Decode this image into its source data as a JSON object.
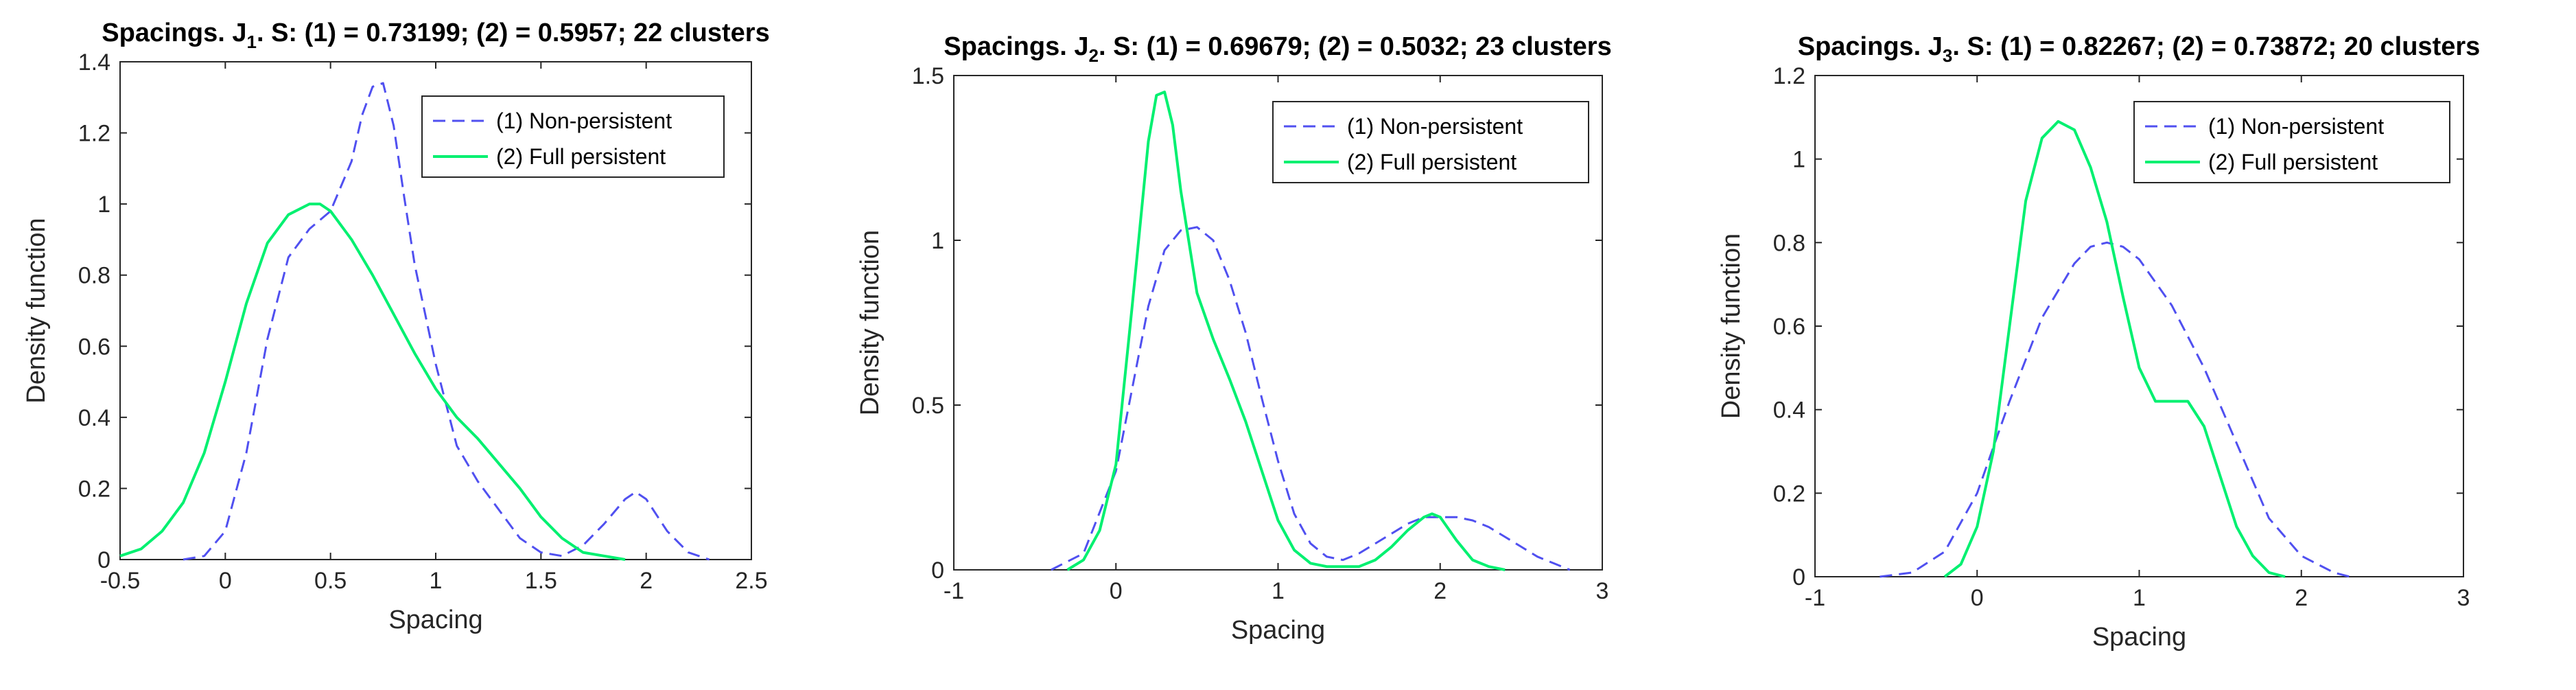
{
  "colors": {
    "series1": "#5050F0",
    "series2": "#00F070",
    "axis": "#262626"
  },
  "chart_data": [
    {
      "type": "line",
      "title": {
        "pre": "Spacings. J",
        "sub": "1",
        "post": ". S: (1) = 0.73199; (2) = 0.5957; 22 clusters"
      },
      "xlabel": "Spacing",
      "ylabel": "Density function",
      "xlim": [
        -0.5,
        2.5
      ],
      "ylim": [
        0,
        1.4
      ],
      "xticks": [
        -0.5,
        0,
        0.5,
        1,
        1.5,
        2,
        2.5
      ],
      "xtick_labels": [
        "-0.5",
        "0",
        "0.5",
        "1",
        "1.5",
        "2",
        "2.5"
      ],
      "yticks": [
        0,
        0.2,
        0.4,
        0.6,
        0.8,
        1,
        1.2,
        1.4
      ],
      "ytick_labels": [
        "0",
        "0.2",
        "0.4",
        "0.6",
        "0.8",
        "1",
        "1.2",
        "1.4"
      ],
      "legend_position": "top-right",
      "series": [
        {
          "name": "(1) Non-persistent",
          "style": "dashed",
          "x": [
            -0.2,
            -0.1,
            0,
            0.1,
            0.2,
            0.3,
            0.4,
            0.5,
            0.6,
            0.65,
            0.7,
            0.75,
            0.8,
            0.85,
            0.9,
            1.0,
            1.1,
            1.2,
            1.3,
            1.4,
            1.5,
            1.6,
            1.7,
            1.8,
            1.9,
            1.95,
            2.0,
            2.1,
            2.2,
            2.3
          ],
          "y": [
            0,
            0.01,
            0.08,
            0.3,
            0.62,
            0.85,
            0.93,
            0.98,
            1.12,
            1.25,
            1.33,
            1.34,
            1.22,
            1.02,
            0.83,
            0.55,
            0.32,
            0.22,
            0.14,
            0.06,
            0.02,
            0.01,
            0.04,
            0.1,
            0.17,
            0.19,
            0.17,
            0.08,
            0.02,
            0
          ]
        },
        {
          "name": "(2) Full persistent",
          "style": "solid",
          "x": [
            -0.5,
            -0.4,
            -0.3,
            -0.2,
            -0.1,
            0,
            0.1,
            0.2,
            0.3,
            0.4,
            0.45,
            0.5,
            0.6,
            0.7,
            0.8,
            0.9,
            1.0,
            1.1,
            1.2,
            1.3,
            1.4,
            1.5,
            1.6,
            1.7,
            1.8,
            1.9
          ],
          "y": [
            0.01,
            0.03,
            0.08,
            0.16,
            0.3,
            0.5,
            0.72,
            0.89,
            0.97,
            1.0,
            1.0,
            0.98,
            0.9,
            0.8,
            0.69,
            0.58,
            0.48,
            0.4,
            0.34,
            0.27,
            0.2,
            0.12,
            0.06,
            0.02,
            0.01,
            0
          ]
        }
      ]
    },
    {
      "type": "line",
      "title": {
        "pre": "Spacings. J",
        "sub": "2",
        "post": ". S: (1) = 0.69679; (2) = 0.5032; 23 clusters"
      },
      "xlabel": "Spacing",
      "ylabel": "Density function",
      "xlim": [
        -1,
        3
      ],
      "ylim": [
        0,
        1.5
      ],
      "xticks": [
        -1,
        0,
        1,
        2,
        3
      ],
      "xtick_labels": [
        "-1",
        "0",
        "1",
        "2",
        "3"
      ],
      "yticks": [
        0,
        0.5,
        1,
        1.5
      ],
      "ytick_labels": [
        "0",
        "0.5",
        "1",
        "1.5"
      ],
      "legend_position": "top-right",
      "series": [
        {
          "name": "(1) Non-persistent",
          "style": "dashed",
          "x": [
            -0.4,
            -0.2,
            0,
            0.1,
            0.2,
            0.3,
            0.4,
            0.5,
            0.6,
            0.7,
            0.8,
            0.9,
            1.0,
            1.1,
            1.2,
            1.3,
            1.4,
            1.5,
            1.6,
            1.7,
            1.8,
            1.9,
            2.0,
            2.1,
            2.2,
            2.3,
            2.4,
            2.5,
            2.6,
            2.7,
            2.8
          ],
          "y": [
            0,
            0.05,
            0.3,
            0.55,
            0.8,
            0.97,
            1.03,
            1.04,
            1.0,
            0.88,
            0.72,
            0.52,
            0.33,
            0.17,
            0.08,
            0.04,
            0.03,
            0.05,
            0.08,
            0.11,
            0.14,
            0.16,
            0.16,
            0.16,
            0.15,
            0.13,
            0.1,
            0.07,
            0.04,
            0.02,
            0
          ]
        },
        {
          "name": "(2) Full persistent",
          "style": "solid",
          "x": [
            -0.3,
            -0.2,
            -0.1,
            0,
            0.1,
            0.2,
            0.25,
            0.3,
            0.35,
            0.4,
            0.5,
            0.6,
            0.7,
            0.8,
            0.9,
            1.0,
            1.1,
            1.2,
            1.3,
            1.4,
            1.5,
            1.6,
            1.7,
            1.8,
            1.9,
            1.95,
            2.0,
            2.1,
            2.2,
            2.3,
            2.4
          ],
          "y": [
            0,
            0.03,
            0.12,
            0.32,
            0.8,
            1.3,
            1.44,
            1.45,
            1.35,
            1.15,
            0.84,
            0.7,
            0.58,
            0.45,
            0.3,
            0.15,
            0.06,
            0.02,
            0.01,
            0.01,
            0.01,
            0.03,
            0.07,
            0.12,
            0.16,
            0.17,
            0.16,
            0.09,
            0.03,
            0.01,
            0
          ]
        }
      ]
    },
    {
      "type": "line",
      "title": {
        "pre": "Spacings. J",
        "sub": "3",
        "post": ". S: (1) = 0.82267; (2) = 0.73872; 20 clusters"
      },
      "xlabel": "Spacing",
      "ylabel": "Density function",
      "xlim": [
        -1,
        3
      ],
      "ylim": [
        0,
        1.2
      ],
      "xticks": [
        -1,
        0,
        1,
        2,
        3
      ],
      "xtick_labels": [
        "-1",
        "0",
        "1",
        "2",
        "3"
      ],
      "yticks": [
        0,
        0.2,
        0.4,
        0.6,
        0.8,
        1,
        1.2
      ],
      "ytick_labels": [
        "0",
        "0.2",
        "0.4",
        "0.6",
        "0.8",
        "1",
        "1.2"
      ],
      "legend_position": "top-right",
      "series": [
        {
          "name": "(1) Non-persistent",
          "style": "dashed",
          "x": [
            -0.6,
            -0.4,
            -0.2,
            0,
            0.2,
            0.4,
            0.6,
            0.7,
            0.8,
            0.9,
            1.0,
            1.2,
            1.4,
            1.6,
            1.8,
            2.0,
            2.2,
            2.3
          ],
          "y": [
            0,
            0.01,
            0.06,
            0.2,
            0.42,
            0.62,
            0.75,
            0.79,
            0.8,
            0.79,
            0.76,
            0.65,
            0.5,
            0.32,
            0.14,
            0.05,
            0.01,
            0
          ]
        },
        {
          "name": "(2) Full persistent",
          "style": "solid",
          "x": [
            -0.2,
            -0.1,
            0,
            0.1,
            0.2,
            0.3,
            0.4,
            0.5,
            0.6,
            0.7,
            0.8,
            0.9,
            1.0,
            1.1,
            1.2,
            1.3,
            1.4,
            1.5,
            1.6,
            1.7,
            1.8,
            1.9
          ],
          "y": [
            0,
            0.03,
            0.12,
            0.3,
            0.6,
            0.9,
            1.05,
            1.09,
            1.07,
            0.98,
            0.85,
            0.67,
            0.5,
            0.42,
            0.42,
            0.42,
            0.36,
            0.24,
            0.12,
            0.05,
            0.01,
            0
          ]
        }
      ]
    }
  ]
}
